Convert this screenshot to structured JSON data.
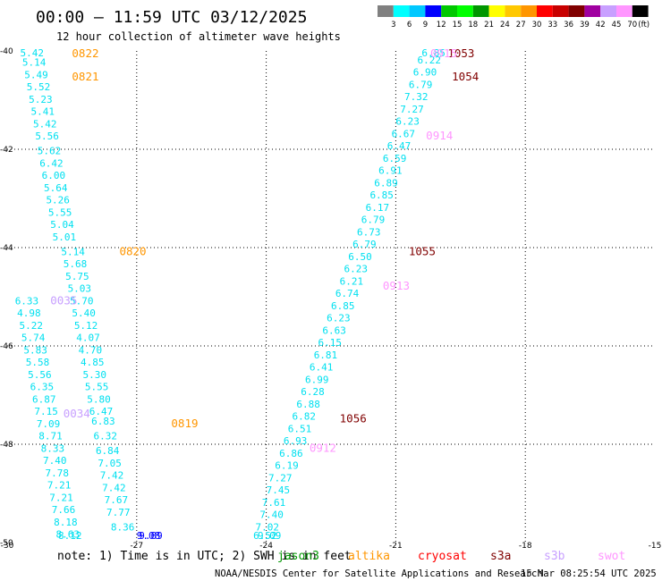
{
  "header": {
    "title": "00:00 — 11:59 UTC 03/12/2025",
    "subtitle": "12 hour collection of altimeter wave heights"
  },
  "colorbar": {
    "colors": [
      "#808080",
      "#00ffff",
      "#00c8ff",
      "#0000ff",
      "#00c800",
      "#00ff00",
      "#009600",
      "#ffff00",
      "#ffc800",
      "#ff9600",
      "#ff0000",
      "#c80000",
      "#800000",
      "#a000a0",
      "#c8a0ff",
      "#ff96ff",
      "#000000"
    ],
    "labels": [
      "3",
      "6",
      "9",
      "12",
      "15",
      "18",
      "21",
      "24",
      "27",
      "30",
      "33",
      "36",
      "39",
      "42",
      "45",
      "70"
    ],
    "unit": "(ft)"
  },
  "chart_data": {
    "type": "scatter",
    "xlim": [
      -30,
      -15
    ],
    "ylim": [
      -50,
      -40
    ],
    "x_ticks": [
      -30,
      -27,
      -24,
      -21,
      -18,
      -15
    ],
    "y_ticks": [
      -40,
      -42,
      -44,
      -46,
      -48,
      -50
    ],
    "grid": true,
    "series": [
      {
        "name": "altika",
        "color": "#00e0f0",
        "points": [
          [
            -29.7,
            -40.0,
            5.42
          ],
          [
            -29.65,
            -40.3,
            5.14
          ],
          [
            -29.6,
            -40.55,
            5.49
          ],
          [
            -29.55,
            -40.8,
            5.52
          ],
          [
            -29.5,
            -41.05,
            5.23
          ],
          [
            -29.45,
            -41.3,
            5.41
          ],
          [
            -29.4,
            -41.55,
            5.42
          ],
          [
            -29.35,
            -41.8,
            5.56
          ],
          [
            -29.3,
            -42.1,
            5.62
          ],
          [
            -29.25,
            -42.35,
            6.42
          ],
          [
            -29.2,
            -42.6,
            6.0
          ],
          [
            -29.15,
            -42.85,
            5.64
          ],
          [
            -29.1,
            -43.1,
            5.26
          ],
          [
            -29.05,
            -43.35,
            5.55
          ],
          [
            -29.0,
            -43.6,
            5.04
          ],
          [
            -28.95,
            -43.85,
            5.01
          ],
          [
            -28.75,
            -44.15,
            5.14
          ],
          [
            -28.7,
            -44.4,
            5.68
          ],
          [
            -28.65,
            -44.65,
            5.75
          ],
          [
            -28.6,
            -44.9,
            5.03
          ],
          [
            -28.55,
            -45.15,
            5.7
          ],
          [
            -28.5,
            -45.4,
            5.4
          ],
          [
            -28.45,
            -45.65,
            5.12
          ],
          [
            -28.4,
            -45.9,
            4.07
          ],
          [
            -28.35,
            -46.15,
            4.7
          ],
          [
            -28.3,
            -46.4,
            4.85
          ],
          [
            -28.25,
            -46.65,
            5.3
          ],
          [
            -28.2,
            -46.9,
            5.55
          ],
          [
            -28.15,
            -47.15,
            5.8
          ],
          [
            -28.1,
            -47.4,
            6.47
          ],
          [
            -28.05,
            -47.6,
            6.83
          ],
          [
            -28.0,
            -47.9,
            6.32
          ],
          [
            -27.95,
            -48.2,
            6.84
          ],
          [
            -27.9,
            -48.45,
            7.05
          ],
          [
            -27.85,
            -48.7,
            7.42
          ],
          [
            -27.8,
            -48.95,
            7.42
          ],
          [
            -27.75,
            -49.2,
            7.67
          ],
          [
            -27.7,
            -49.45,
            7.77
          ],
          [
            -27.6,
            -49.75,
            8.36
          ]
        ]
      },
      {
        "name": "altika",
        "color": "#00e0f0",
        "points": [
          [
            -29.82,
            -45.15,
            6.33
          ],
          [
            -29.77,
            -45.4,
            4.98
          ],
          [
            -29.72,
            -45.65,
            5.22
          ],
          [
            -29.67,
            -45.9,
            5.74
          ],
          [
            -29.62,
            -46.15,
            5.83
          ],
          [
            -29.57,
            -46.4,
            5.58
          ],
          [
            -29.52,
            -46.65,
            5.56
          ],
          [
            -29.47,
            -46.9,
            6.35
          ],
          [
            -29.42,
            -47.15,
            6.87
          ],
          [
            -29.37,
            -47.4,
            7.15
          ],
          [
            -29.32,
            -47.65,
            7.09
          ],
          [
            -29.27,
            -47.9,
            8.71
          ],
          [
            -29.22,
            -48.15,
            8.33
          ],
          [
            -29.17,
            -48.4,
            7.4
          ],
          [
            -29.12,
            -48.65,
            7.78
          ],
          [
            -29.07,
            -48.9,
            7.21
          ],
          [
            -29.02,
            -49.15,
            7.21
          ],
          [
            -28.97,
            -49.4,
            7.66
          ],
          [
            -28.92,
            -49.65,
            8.18
          ],
          [
            -28.87,
            -49.9,
            8.63
          ],
          [
            -28.82,
            -50.15,
            8.12
          ]
        ]
      }
    ],
    "dark_blue_points": [
      [
        -27.0,
        -49.95,
        9.08
      ],
      [
        -26.95,
        -50.2,
        9.89
      ]
    ],
    "right_track": [
      [
        -24.2,
        -50.2,
        9.09
      ],
      [
        -24.3,
        -50.0,
        6.52
      ],
      [
        -24.25,
        -49.75,
        7.02
      ],
      [
        -24.15,
        -49.5,
        7.4
      ],
      [
        -24.1,
        -49.25,
        7.61
      ],
      [
        -24.0,
        -49.0,
        7.45
      ],
      [
        -23.95,
        -48.75,
        7.27
      ],
      [
        -23.8,
        -48.5,
        6.19
      ],
      [
        -23.7,
        -48.25,
        6.86
      ],
      [
        -23.6,
        -48.0,
        6.93
      ],
      [
        -23.5,
        -47.75,
        6.51
      ],
      [
        -23.4,
        -47.5,
        6.82
      ],
      [
        -23.3,
        -47.25,
        6.88
      ],
      [
        -23.2,
        -47.0,
        6.28
      ],
      [
        -23.1,
        -46.75,
        6.99
      ],
      [
        -23.0,
        -46.5,
        6.41
      ],
      [
        -22.9,
        -46.25,
        6.81
      ],
      [
        -22.8,
        -46.0,
        6.15
      ],
      [
        -22.7,
        -45.75,
        6.63
      ],
      [
        -22.6,
        -45.5,
        6.23
      ],
      [
        -22.5,
        -45.25,
        6.85
      ],
      [
        -22.4,
        -45.0,
        6.74
      ],
      [
        -22.3,
        -44.75,
        6.21
      ],
      [
        -22.2,
        -44.5,
        6.23
      ],
      [
        -22.1,
        -44.25,
        6.5
      ],
      [
        -22.0,
        -44.0,
        6.79
      ],
      [
        -21.9,
        -43.75,
        6.73
      ],
      [
        -21.8,
        -43.5,
        6.79
      ],
      [
        -21.7,
        -43.25,
        6.17
      ],
      [
        -21.6,
        -43.0,
        6.85
      ],
      [
        -21.5,
        -42.75,
        6.89
      ],
      [
        -21.4,
        -42.5,
        6.91
      ],
      [
        -21.3,
        -42.25,
        6.59
      ],
      [
        -21.2,
        -42.0,
        6.47
      ],
      [
        -21.1,
        -41.75,
        6.67
      ],
      [
        -21.0,
        -41.5,
        6.23
      ],
      [
        -20.9,
        -41.25,
        7.27
      ],
      [
        -20.8,
        -41.0,
        7.32
      ],
      [
        -20.7,
        -40.75,
        6.79
      ],
      [
        -20.6,
        -40.5,
        6.9
      ],
      [
        -20.5,
        -40.25,
        6.22
      ],
      [
        -20.4,
        -40.0,
        6.85
      ]
    ],
    "pass_labels": [
      {
        "text": "0822",
        "x": -28.5,
        "y": -40.05,
        "color": "#ff9600"
      },
      {
        "text": "0821",
        "x": -28.5,
        "y": -40.6,
        "color": "#ff9600"
      },
      {
        "text": "0820",
        "x": -27.4,
        "y": -44.15,
        "color": "#ff9600"
      },
      {
        "text": "0819",
        "x": -26.2,
        "y": -47.65,
        "color": "#ff9600"
      },
      {
        "text": "0035",
        "x": -29.0,
        "y": -45.15,
        "color": "#c8a0ff"
      },
      {
        "text": "0034",
        "x": -28.7,
        "y": -47.45,
        "color": "#c8a0ff"
      },
      {
        "text": "1053",
        "x": -19.8,
        "y": -40.0,
        "color": "#800000"
      },
      {
        "text": "1054",
        "x": -19.7,
        "y": -40.6,
        "color": "#800000"
      },
      {
        "text": "1055",
        "x": -20.7,
        "y": -44.15,
        "color": "#800000"
      },
      {
        "text": "1056",
        "x": -22.3,
        "y": -47.55,
        "color": "#800000"
      },
      {
        "text": "0914",
        "x": -20.3,
        "y": -41.8,
        "color": "#ff96ff"
      },
      {
        "text": "0913",
        "x": -21.3,
        "y": -44.85,
        "color": "#ff96ff"
      },
      {
        "text": "0912",
        "x": -23.0,
        "y": -48.15,
        "color": "#ff96ff"
      },
      {
        "text": "0915",
        "x": -20.2,
        "y": -40.0,
        "color": "#ff96ff"
      }
    ]
  },
  "footer": {
    "note": "note:  1) Time is in UTC; 2) SWH is in feet",
    "satellites": [
      {
        "name": "jason3",
        "color": "#009600"
      },
      {
        "name": "altika",
        "color": "#ff9600"
      },
      {
        "name": "cryosat",
        "color": "#ff0000"
      },
      {
        "name": "s3a",
        "color": "#800000"
      },
      {
        "name": "s3b",
        "color": "#c8a0ff"
      },
      {
        "name": "swot",
        "color": "#ff96ff"
      }
    ],
    "credit": "NOAA/NESDIS Center for Satellite Applications and Research",
    "timestamp": "15 Mar 08:25:54 UTC 2025"
  }
}
